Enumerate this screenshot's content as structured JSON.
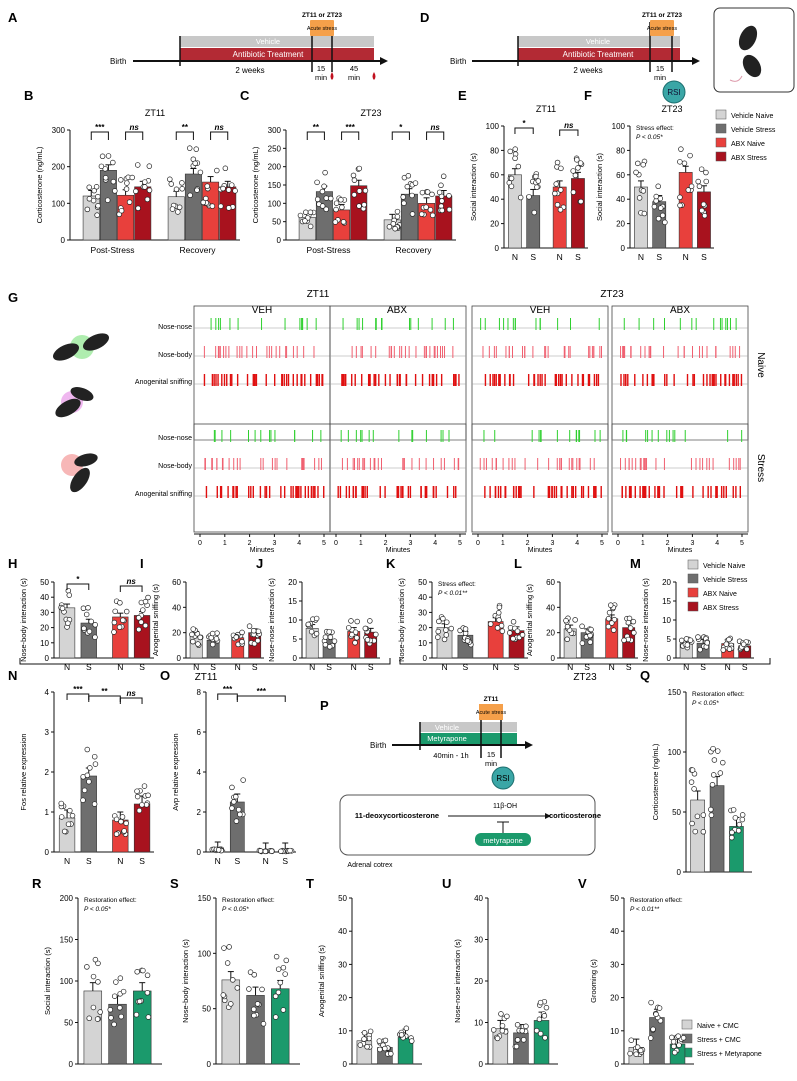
{
  "colors": {
    "vehicle_naive": "#d4d4d4",
    "vehicle_stress": "#6e6e6e",
    "abx_naive": "#e8403c",
    "abx_stress": "#a8121e",
    "metyrapone": "#1b9a6c",
    "rsi": "#3aa6a6",
    "acute": "#f5a04a",
    "nose_nose": "#2fd02f",
    "nose_body": "#f06070",
    "anogenital": "#e01010"
  },
  "panels": {
    "A": {
      "letter": "A",
      "zt": "ZT11 or ZT23",
      "acute": "Acute stress",
      "vehicle": "Vehicle",
      "abx": "Antibiotic Treatment",
      "birth": "Birth",
      "weeks": "2 weeks",
      "t1": "15",
      "t1u": "min",
      "t2": "45",
      "t2u": "min"
    },
    "D": {
      "letter": "D",
      "zt": "ZT11 or ZT23",
      "acute": "Acute stress",
      "vehicle": "Vehicle",
      "abx": "Antibiotic Treatment",
      "birth": "Birth",
      "weeks": "2 weeks",
      "t1": "15",
      "t1u": "min",
      "rsi": "RSI"
    },
    "legend1": {
      "items": [
        "Vehicle Naive",
        "Vehicle Stress",
        "ABX Naive",
        "ABX Stress"
      ]
    },
    "legend2": {
      "items": [
        "Vehicle Naive",
        "Vehicle Stress",
        "ABX Naive",
        "ABX Stress"
      ]
    },
    "legend3": {
      "items": [
        "Naive + CMC",
        "Stress + CMC",
        "Stress + Metyrapone"
      ]
    },
    "G": {
      "letter": "G",
      "zt11": "ZT11",
      "zt23": "ZT23",
      "cols": [
        "VEH",
        "ABX",
        "VEH",
        "ABX"
      ],
      "rows": [
        "Nose-nose",
        "Nose-body",
        "Anogenital sniffing"
      ],
      "naive": "Naive",
      "stress": "Stress",
      "minutes": "Minutes",
      "ticks": [
        "0",
        "1",
        "2",
        "3",
        "4",
        "5"
      ]
    },
    "P": {
      "letter": "P",
      "zt": "ZT11",
      "acute": "Acute stress",
      "vehicle": "Vehicle",
      "mety": "Metyrapone",
      "birth": "Birth",
      "dur": "40min - 1h",
      "t1": "15",
      "t1u": "min",
      "rsi": "RSI",
      "substrate": "11-deoxycorticosterone",
      "enzyme": "11β-OH",
      "product": "corticosterone",
      "inhibitor": "metyrapone",
      "organ": "Adrenal cotrex"
    },
    "bottom_labels": {
      "zt11": "ZT11",
      "zt23": "ZT23"
    }
  },
  "chart_data": [
    {
      "id": "B",
      "type": "bar",
      "letter": "B",
      "title": "ZT11",
      "ylabel": "Corticosterone (ng/mL)",
      "ylim": [
        0,
        300
      ],
      "yticks": [
        0,
        100,
        200,
        300
      ],
      "groups": [
        "Post-Stress",
        "Recovery"
      ],
      "series": [
        {
          "name": "Vehicle Naive",
          "values": [
            120,
            118
          ]
        },
        {
          "name": "Vehicle Stress",
          "values": [
            190,
            180
          ]
        },
        {
          "name": "ABX Naive",
          "values": [
            122,
            158
          ]
        },
        {
          "name": "ABX Stress",
          "values": [
            145,
            145
          ]
        }
      ],
      "sig": [
        {
          "label": "***",
          "pair": [
            0,
            1
          ],
          "g": 0
        },
        {
          "label": "ns",
          "pair": [
            2,
            3
          ],
          "g": 0
        },
        {
          "label": "**",
          "pair": [
            0,
            1
          ],
          "g": 1
        },
        {
          "label": "ns",
          "pair": [
            2,
            3
          ],
          "g": 1
        }
      ]
    },
    {
      "id": "C",
      "type": "bar",
      "letter": "C",
      "title": "ZT23",
      "ylabel": "Corticosterone (ng/mL)",
      "ylim": [
        0,
        300
      ],
      "yticks": [
        0,
        50,
        100,
        150,
        200,
        250,
        300
      ],
      "groups": [
        "Post-Stress",
        "Recovery"
      ],
      "series": [
        {
          "name": "Vehicle Naive",
          "values": [
            62,
            55
          ]
        },
        {
          "name": "Vehicle Stress",
          "values": [
            132,
            125
          ]
        },
        {
          "name": "ABX Naive",
          "values": [
            82,
            100
          ]
        },
        {
          "name": "ABX Stress",
          "values": [
            148,
            120
          ]
        }
      ],
      "sig": [
        {
          "label": "**",
          "pair": [
            0,
            1
          ],
          "g": 0
        },
        {
          "label": "***",
          "pair": [
            2,
            3
          ],
          "g": 0
        },
        {
          "label": "*",
          "pair": [
            0,
            1
          ],
          "g": 1
        },
        {
          "label": "ns",
          "pair": [
            2,
            3
          ],
          "g": 1
        }
      ]
    },
    {
      "id": "E",
      "type": "bar",
      "letter": "E",
      "title": "ZT11",
      "ylabel": "Social interaction (s)",
      "ylim": [
        0,
        100
      ],
      "yticks": [
        0,
        20,
        40,
        60,
        80,
        100
      ],
      "categories": [
        "N",
        "S",
        "N",
        "S"
      ],
      "values": [
        60,
        43,
        50,
        57
      ],
      "series_colors": [
        "vehicle_naive",
        "vehicle_stress",
        "abx_naive",
        "abx_stress"
      ],
      "sig": [
        {
          "label": "*",
          "pair": [
            0,
            1
          ]
        },
        {
          "label": "ns",
          "pair": [
            2,
            3
          ]
        }
      ]
    },
    {
      "id": "F",
      "type": "bar",
      "letter": "F",
      "title": "ZT23",
      "ylabel": "Social interaction (s)",
      "ylim": [
        0,
        100
      ],
      "yticks": [
        0,
        20,
        40,
        60,
        80,
        100
      ],
      "categories": [
        "N",
        "S",
        "N",
        "S"
      ],
      "values": [
        50,
        38,
        62,
        46
      ],
      "series_colors": [
        "vehicle_naive",
        "vehicle_stress",
        "abx_naive",
        "abx_stress"
      ],
      "note1": "Stress effect:",
      "note2": "P < 0.05*"
    },
    {
      "id": "H",
      "type": "bar",
      "letter": "H",
      "ylabel": "Nose-body interaction (s)",
      "ylim": [
        0,
        50
      ],
      "yticks": [
        0,
        10,
        20,
        30,
        40,
        50
      ],
      "categories": [
        "N",
        "S",
        "N",
        "S"
      ],
      "values": [
        33,
        23,
        27,
        28
      ],
      "series_colors": [
        "vehicle_naive",
        "vehicle_stress",
        "abx_naive",
        "abx_stress"
      ],
      "sig": [
        {
          "label": "*",
          "pair": [
            0,
            1
          ]
        },
        {
          "label": "ns",
          "pair": [
            2,
            3
          ]
        }
      ]
    },
    {
      "id": "I",
      "type": "bar",
      "letter": "I",
      "ylabel": "Anogenital sniffing (s)",
      "ylim": [
        0,
        60
      ],
      "yticks": [
        0,
        20,
        40,
        60
      ],
      "categories": [
        "N",
        "S",
        "N",
        "S"
      ],
      "values": [
        18,
        14,
        16,
        20
      ],
      "series_colors": [
        "vehicle_naive",
        "vehicle_stress",
        "abx_naive",
        "abx_stress"
      ]
    },
    {
      "id": "J",
      "type": "bar",
      "letter": "J",
      "ylabel": "Nose-nose interaction (s)",
      "ylim": [
        0,
        20
      ],
      "yticks": [
        0,
        5,
        10,
        15,
        20
      ],
      "categories": [
        "N",
        "S",
        "N",
        "S"
      ],
      "values": [
        7.8,
        4.8,
        7,
        6.8
      ],
      "series_colors": [
        "vehicle_naive",
        "vehicle_stress",
        "abx_naive",
        "abx_stress"
      ]
    },
    {
      "id": "K",
      "type": "bar",
      "letter": "K",
      "ylabel": "Nose-body interaction (s)",
      "ylim": [
        0,
        50
      ],
      "yticks": [
        0,
        10,
        20,
        30,
        40,
        50
      ],
      "categories": [
        "N",
        "S",
        "N",
        "S"
      ],
      "values": [
        20,
        15,
        24,
        18
      ],
      "series_colors": [
        "vehicle_naive",
        "vehicle_stress",
        "abx_naive",
        "abx_stress"
      ],
      "note1": "Stress effect:",
      "note2": "P < 0.01**"
    },
    {
      "id": "L",
      "type": "bar",
      "letter": "L",
      "ylabel": "Anogenital sniffing (s)",
      "ylim": [
        0,
        60
      ],
      "yticks": [
        0,
        20,
        40,
        60
      ],
      "categories": [
        "N",
        "S",
        "N",
        "S"
      ],
      "values": [
        23,
        20,
        31,
        24
      ],
      "series_colors": [
        "vehicle_naive",
        "vehicle_stress",
        "abx_naive",
        "abx_stress"
      ]
    },
    {
      "id": "M",
      "type": "bar",
      "letter": "M",
      "ylabel": "Nose-nose interaction (s)",
      "ylim": [
        0,
        20
      ],
      "yticks": [
        0,
        5,
        10,
        15,
        20
      ],
      "categories": [
        "N",
        "S",
        "N",
        "S"
      ],
      "values": [
        3.8,
        3.9,
        3.8,
        3.2
      ],
      "series_colors": [
        "vehicle_naive",
        "vehicle_stress",
        "abx_naive",
        "abx_stress"
      ]
    },
    {
      "id": "N",
      "type": "bar",
      "letter": "N",
      "ylabel": "Fos relative expression",
      "ylim": [
        0,
        4
      ],
      "yticks": [
        0,
        1,
        2,
        3,
        4
      ],
      "categories": [
        "N",
        "S",
        "N",
        "S"
      ],
      "values": [
        0.85,
        1.9,
        0.8,
        1.2
      ],
      "series_colors": [
        "vehicle_naive",
        "vehicle_stress",
        "abx_naive",
        "abx_stress"
      ],
      "sig": [
        {
          "label": "***",
          "pair": [
            0,
            1
          ]
        },
        {
          "label": "**",
          "pair": [
            1,
            2
          ]
        },
        {
          "label": "ns",
          "pair": [
            2,
            3
          ]
        }
      ]
    },
    {
      "id": "O",
      "type": "bar",
      "letter": "O",
      "ylabel": "Avp relative expression",
      "ylim": [
        0,
        8
      ],
      "yticks": [
        0,
        2,
        4,
        6,
        8
      ],
      "categories": [
        "N",
        "S",
        "N",
        "S"
      ],
      "values": [
        0.1,
        2.5,
        0.05,
        0.05
      ],
      "series_colors": [
        "vehicle_naive",
        "vehicle_stress",
        "abx_naive",
        "abx_stress"
      ],
      "sig": [
        {
          "label": "***",
          "pair": [
            0,
            1
          ]
        },
        {
          "label": "***",
          "pair": [
            1,
            3
          ]
        }
      ]
    },
    {
      "id": "Q",
      "type": "bar",
      "letter": "Q",
      "ylabel": "Corticosterone (ng/mL)",
      "ylim": [
        0,
        150
      ],
      "yticks": [
        0,
        50,
        100,
        150
      ],
      "categories": [
        "",
        "",
        ""
      ],
      "values": [
        60,
        72,
        38
      ],
      "series_colors": [
        "vehicle_naive",
        "vehicle_stress",
        "metyrapone"
      ],
      "note1": "Restoration effect:",
      "note2": "P < 0.05*"
    },
    {
      "id": "R",
      "type": "bar",
      "letter": "R",
      "ylabel": "Social interaction (s)",
      "ylim": [
        0,
        200
      ],
      "yticks": [
        0,
        50,
        100,
        150,
        200
      ],
      "categories": [
        "",
        "",
        ""
      ],
      "values": [
        88,
        72,
        88
      ],
      "series_colors": [
        "vehicle_naive",
        "vehicle_stress",
        "metyrapone"
      ],
      "note1": "Restoration effect:",
      "note2": "P < 0.05*"
    },
    {
      "id": "S",
      "type": "bar",
      "letter": "S",
      "ylabel": "Nose-body interaction (s)",
      "ylim": [
        0,
        150
      ],
      "yticks": [
        0,
        50,
        100,
        150
      ],
      "categories": [
        "",
        "",
        ""
      ],
      "values": [
        76,
        62,
        68
      ],
      "series_colors": [
        "vehicle_naive",
        "vehicle_stress",
        "metyrapone"
      ],
      "note1": "Restoration effect:",
      "note2": "P < 0.05*"
    },
    {
      "id": "T",
      "type": "bar",
      "letter": "T",
      "ylabel": "Anogenital sniffing (s)",
      "ylim": [
        0,
        50
      ],
      "yticks": [
        0,
        10,
        20,
        30,
        40,
        50
      ],
      "categories": [
        "",
        "",
        ""
      ],
      "values": [
        7,
        5,
        8
      ],
      "series_colors": [
        "vehicle_naive",
        "vehicle_stress",
        "metyrapone"
      ]
    },
    {
      "id": "U",
      "type": "bar",
      "letter": "U",
      "ylabel": "Nose-nose interaction (s)",
      "ylim": [
        0,
        40
      ],
      "yticks": [
        0,
        10,
        20,
        30,
        40
      ],
      "categories": [
        "",
        "",
        ""
      ],
      "values": [
        8.5,
        7.5,
        10.5
      ],
      "series_colors": [
        "vehicle_naive",
        "vehicle_stress",
        "metyrapone"
      ]
    },
    {
      "id": "V",
      "type": "bar",
      "letter": "V",
      "ylabel": "Grooming (s)",
      "ylim": [
        0,
        50
      ],
      "yticks": [
        0,
        10,
        20,
        30,
        40,
        50
      ],
      "categories": [
        "",
        "",
        ""
      ],
      "values": [
        5,
        14,
        6
      ],
      "series_colors": [
        "vehicle_naive",
        "vehicle_stress",
        "metyrapone"
      ],
      "note1": "Restoration effect:",
      "note2": "P < 0.01**"
    }
  ]
}
